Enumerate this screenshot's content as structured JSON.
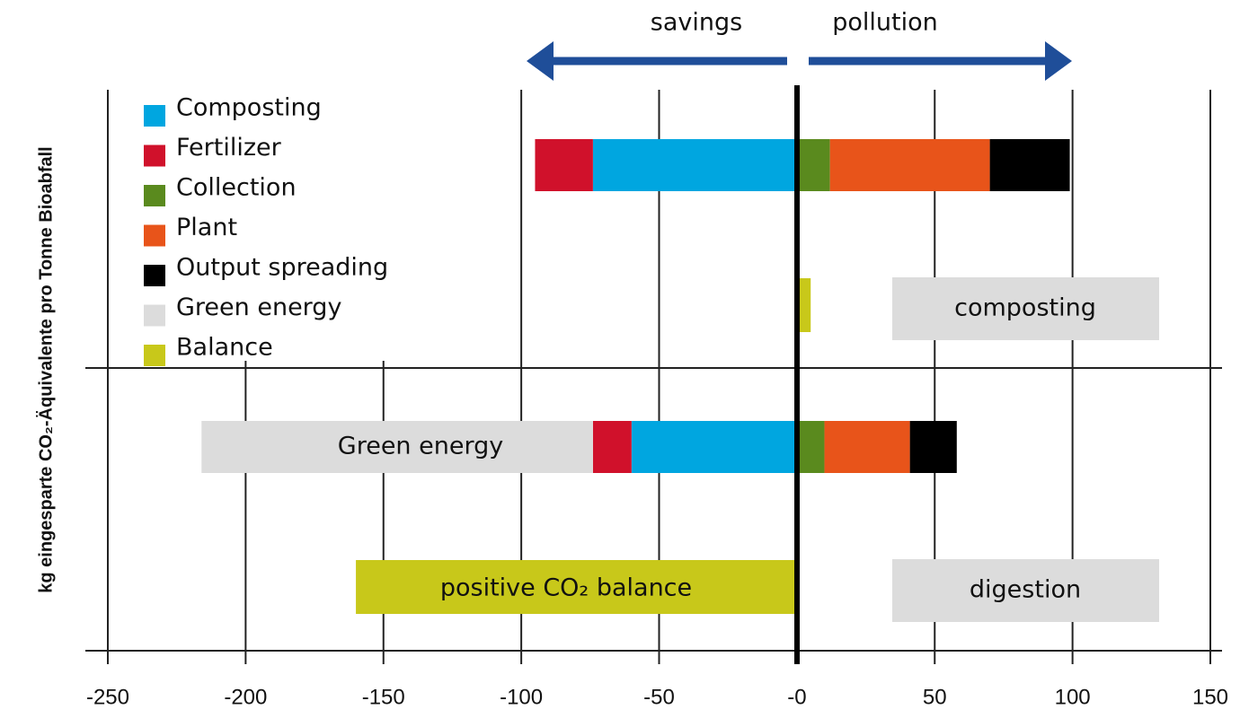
{
  "chart_data": {
    "type": "stacked-bar-horizontal",
    "y_label": "kg eingesparte CO₂-Äquivalente pro Tonne Bioabfall",
    "categories": [
      "composting",
      "digestion"
    ],
    "series": [
      {
        "name": "Composting",
        "color": "#00a6e0",
        "values": [
          -74,
          -60
        ]
      },
      {
        "name": "Fertilizer",
        "color": "#d0112b",
        "values": [
          -21,
          -14
        ]
      },
      {
        "name": "Collection",
        "color": "#5a8a1e",
        "values": [
          12,
          10
        ]
      },
      {
        "name": "Plant",
        "color": "#e8541a",
        "values": [
          58,
          31
        ]
      },
      {
        "name": "Output spreading",
        "color": "#000000",
        "values": [
          29,
          17
        ]
      },
      {
        "name": "Green energy",
        "color": "#dcdcdc",
        "values": [
          null,
          -142
        ]
      }
    ],
    "balance": {
      "name": "Balance",
      "color": "#c8c81a",
      "values": [
        5,
        -160
      ]
    },
    "xlim": [
      -250,
      150
    ],
    "xticks": [
      -250,
      -200,
      -150,
      -100,
      -50,
      {
        "value": 0,
        "label": "-0"
      },
      50,
      100,
      150
    ],
    "grid": true,
    "annotations": [
      "savings",
      "pollution",
      "Green energy",
      "positive CO₂ balance"
    ]
  }
}
